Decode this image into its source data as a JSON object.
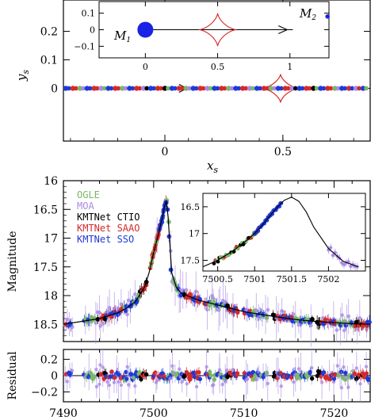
{
  "chart_data": [
    {
      "type": "scatter",
      "panel": "source-trajectory",
      "xlabel": "x",
      "xlabel_sub": "s",
      "ylabel": "y",
      "ylabel_sub": "s",
      "xlim": [
        -0.43,
        0.87
      ],
      "ylim": [
        -0.185,
        0.31
      ],
      "xticks": [
        0,
        0.5
      ],
      "yticks": [
        0.1,
        0.2,
        0
      ],
      "ytick_labels": [
        "0.1",
        "0.2",
        "0"
      ],
      "source_track_y": 0,
      "caustic": {
        "center_x": 0.49,
        "center_y": 0,
        "half_width": 0.08,
        "half_height": 0.05
      },
      "source_track_dots": {
        "x": [
          -0.42,
          -0.39,
          -0.36,
          -0.33,
          -0.3,
          -0.27,
          -0.24,
          -0.21,
          -0.18,
          -0.15,
          -0.12,
          -0.09,
          -0.06,
          -0.03,
          0.0,
          0.03,
          0.06,
          0.09,
          0.12,
          0.15,
          0.18,
          0.21,
          0.24,
          0.27,
          0.3,
          0.33,
          0.36,
          0.39,
          0.42,
          0.45,
          0.48,
          0.51,
          0.54,
          0.57,
          0.6,
          0.63,
          0.66,
          0.69,
          0.72,
          0.75,
          0.78,
          0.81,
          0.84
        ],
        "colors": [
          "#1f3ad6",
          "#d42a2a",
          "#7ab86a",
          "#1f3ad6",
          "#d42a2a",
          "#a98ae3",
          "#1f3ad6",
          "#d42a2a",
          "#7ab86a",
          "#1f3ad6",
          "#d42a2a",
          "#a98ae3",
          "#1f3ad6",
          "#d42a2a",
          "#000000",
          "#1f3ad6",
          "#d42a2a",
          "#7ab86a",
          "#1f3ad6",
          "#d42a2a",
          "#a98ae3",
          "#1f3ad6",
          "#d42a2a",
          "#7ab86a",
          "#1f3ad6",
          "#d42a2a",
          "#a98ae3",
          "#1f3ad6",
          "#d42a2a",
          "#7ab86a",
          "#1f3ad6",
          "#d42a2a",
          "#a98ae3",
          "#1f3ad6",
          "#d42a2a",
          "#000000",
          "#1f3ad6",
          "#d42a2a",
          "#7ab86a",
          "#1f3ad6",
          "#d42a2a",
          "#a98ae3",
          "#1f3ad6"
        ]
      },
      "inset": {
        "xlim": [
          -0.32,
          1.27
        ],
        "ylim": [
          -0.17,
          0.17
        ],
        "xticks": [
          0,
          0.5,
          1
        ],
        "yticks": [
          0.1,
          0,
          -0.1
        ],
        "ytick_labels": [
          "0.1",
          "0",
          "−0.1"
        ],
        "M1": {
          "label": "M",
          "sub": "1",
          "x": 0,
          "y": 0
        },
        "M2": {
          "label": "M",
          "sub": "2",
          "x": 1.26,
          "y": 0.08
        },
        "caustic": {
          "center_x": 0.5,
          "center_y": 0,
          "half_width": 0.13,
          "half_height": 0.1
        }
      }
    },
    {
      "type": "scatter",
      "panel": "light-curve",
      "ylabel": "Magnitude",
      "xlim": [
        7490,
        7524
      ],
      "ylim": [
        18.8,
        16
      ],
      "yticks": [
        16,
        16.5,
        17,
        17.5,
        18,
        18.5
      ],
      "legend": [
        {
          "name": "OGLE",
          "color": "#7ab86a"
        },
        {
          "name": "MOA",
          "color": "#a98ae3"
        },
        {
          "name": "KMTNet CTIO",
          "color": "#000000"
        },
        {
          "name": "KMTNet SAAO",
          "color": "#d42a2a"
        },
        {
          "name": "KMTNet SSO",
          "color": "#1f3ad6"
        }
      ],
      "model_curve": {
        "x": [
          7490,
          7492,
          7494,
          7496,
          7497,
          7498,
          7499,
          7499.5,
          7500,
          7500.5,
          7500.8,
          7501,
          7501.2,
          7501.4,
          7501.6,
          7501.8,
          7502,
          7502.5,
          7503,
          7504,
          7505,
          7506,
          7508,
          7510,
          7512,
          7514,
          7516,
          7518,
          7520,
          7522,
          7524
        ],
        "y": [
          18.5,
          18.45,
          18.4,
          18.3,
          18.22,
          18.1,
          17.85,
          17.6,
          17.25,
          16.95,
          16.75,
          16.62,
          16.45,
          16.35,
          16.62,
          17.1,
          17.6,
          17.85,
          17.95,
          18.02,
          18.08,
          18.12,
          18.2,
          18.28,
          18.33,
          18.38,
          18.42,
          18.45,
          18.47,
          18.49,
          18.5
        ]
      },
      "inset": {
        "xlim": [
          7500.3,
          7502.5
        ],
        "ylim": [
          17.7,
          16.25
        ],
        "xticks": [
          7500.5,
          7501,
          7501.5,
          7502
        ],
        "yticks": [
          16.5,
          17,
          17.5
        ],
        "model_curve": {
          "x": [
            7500.3,
            7500.5,
            7500.7,
            7500.9,
            7501.0,
            7501.1,
            7501.2,
            7501.3,
            7501.4,
            7501.5,
            7501.6,
            7501.7,
            7501.8,
            7502.0,
            7502.2,
            7502.4
          ],
          "y": [
            17.62,
            17.5,
            17.33,
            17.12,
            17.0,
            16.85,
            16.68,
            16.52,
            16.38,
            16.32,
            16.4,
            16.6,
            16.88,
            17.28,
            17.52,
            17.62
          ]
        }
      }
    },
    {
      "type": "scatter",
      "panel": "residual",
      "ylabel": "Residual",
      "xlim": [
        7490,
        7524
      ],
      "ylim": [
        -0.32,
        0.32
      ],
      "xticks": [
        7490,
        7500,
        7510,
        7520
      ],
      "yticks": [
        0.2,
        0,
        -0.2
      ],
      "ytick_labels": [
        "0.2",
        "0",
        "−0.2"
      ]
    }
  ]
}
